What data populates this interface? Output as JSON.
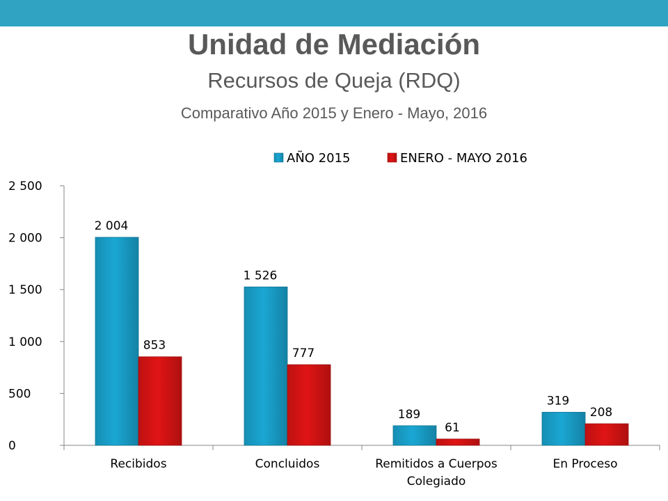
{
  "header": {
    "title": "Unidad de Mediación",
    "subtitle": "Recursos de Queja (RDQ)",
    "caption": "Comparativo Año 2015 y Enero - Mayo, 2016"
  },
  "colors": {
    "topbar": "#2fa3c1",
    "title_text": "#595959",
    "series_2015": "#1aa7d3",
    "series_2016": "#e01414"
  },
  "chart_data": {
    "type": "bar",
    "categories": [
      "Recibidos",
      "Concluidos",
      "Remitidos a Cuerpos Colegiado",
      "En Proceso"
    ],
    "category_lines": [
      [
        "Recibidos"
      ],
      [
        "Concluidos"
      ],
      [
        "Remitidos a Cuerpos",
        "Colegiado"
      ],
      [
        "En Proceso"
      ]
    ],
    "series": [
      {
        "name": "AÑO 2015",
        "values": [
          2004,
          1526,
          189,
          319
        ],
        "labels": [
          "2 004",
          "1 526",
          "189",
          "319"
        ],
        "color": "#1aa7d3"
      },
      {
        "name": "ENERO - MAYO 2016",
        "values": [
          853,
          777,
          61,
          208
        ],
        "labels": [
          "853",
          "777",
          "61",
          "208"
        ],
        "color": "#e01414"
      }
    ],
    "yticks": [
      0,
      500,
      1000,
      1500,
      2000,
      2500
    ],
    "ytick_labels": [
      "0",
      "500",
      "1 000",
      "1 500",
      "2 000",
      "2 500"
    ],
    "ylim": [
      0,
      2500
    ],
    "grid": false,
    "legend": "top"
  }
}
